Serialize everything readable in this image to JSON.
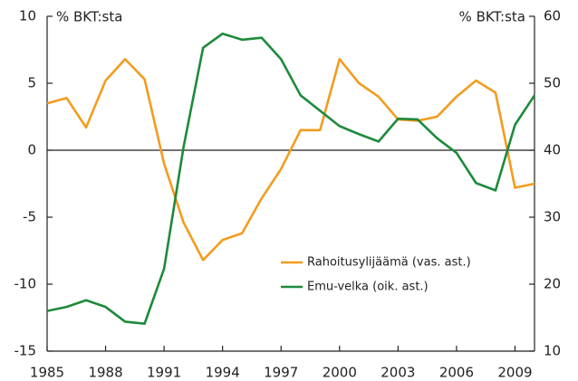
{
  "chart_data": {
    "type": "line",
    "y_unit_label": "% BKT:sta",
    "y2_unit_label": "% BKT:sta",
    "x": [
      1985,
      1986,
      1987,
      1988,
      1989,
      1990,
      1991,
      1992,
      1993,
      1994,
      1995,
      1996,
      1997,
      1998,
      1999,
      2000,
      2001,
      2002,
      2003,
      2004,
      2005,
      2006,
      2007,
      2008,
      2009,
      2010
    ],
    "xlim": [
      1985,
      2010
    ],
    "xticks": [
      1985,
      1988,
      1991,
      1994,
      1997,
      2000,
      2003,
      2006,
      2009
    ],
    "ylim": [
      -15,
      10
    ],
    "yticks": [
      -15,
      -10,
      -5,
      0,
      5,
      10
    ],
    "y2lim": [
      10,
      60
    ],
    "y2ticks": [
      10,
      20,
      30,
      40,
      50,
      60
    ],
    "series": [
      {
        "name": "Rahoitusylijäämä (vas. ast.)",
        "color": "#f39c1e",
        "values": [
          3.5,
          3.9,
          1.7,
          5.2,
          6.8,
          5.3,
          -1,
          -5.4,
          -8.2,
          -6.7,
          -6.2,
          -3.6,
          -1.4,
          1.5,
          1.5,
          6.8,
          5.0,
          4.0,
          2.3,
          2.2,
          2.5,
          4.0,
          5.2,
          4.3,
          -2.8,
          -2.5
        ]
      },
      {
        "name": "Emu-velka (oik. ast.)",
        "color": "#1e8a3c",
        "axis": "y2",
        "values": [
          16,
          16.6,
          17.6,
          16.6,
          14.4,
          14.1,
          22.3,
          40.5,
          55.3,
          57.4,
          56.5,
          56.8,
          53.6,
          48.2,
          45.9,
          43.6,
          42.4,
          41.3,
          44.7,
          44.6,
          41.8,
          39.6,
          35.1,
          34,
          43.8,
          48.2
        ]
      }
    ]
  }
}
